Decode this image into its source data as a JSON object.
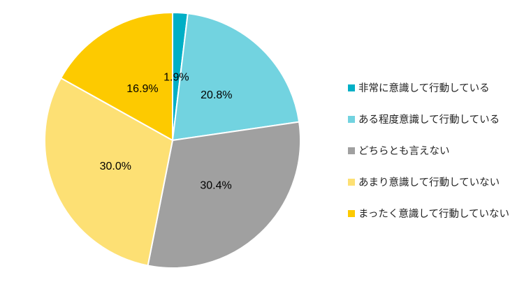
{
  "chart_data": {
    "type": "pie",
    "categories": [
      "非常に意識して行動している",
      "ある程度意識して行動している",
      "どちらとも言えない",
      "あまり意識して行動していない",
      "まったく意識して行動していない"
    ],
    "values": [
      1.9,
      20.8,
      30.4,
      30.0,
      16.9
    ],
    "data_labels": [
      "1.9%",
      "20.8%",
      "30.4%",
      "30.0%",
      "16.9%"
    ],
    "colors": [
      "#00AFC6",
      "#72D3E0",
      "#A0A0A0",
      "#FDE074",
      "#FDCA00"
    ],
    "start": "12 o'clock, clockwise",
    "legend_position": "right"
  }
}
